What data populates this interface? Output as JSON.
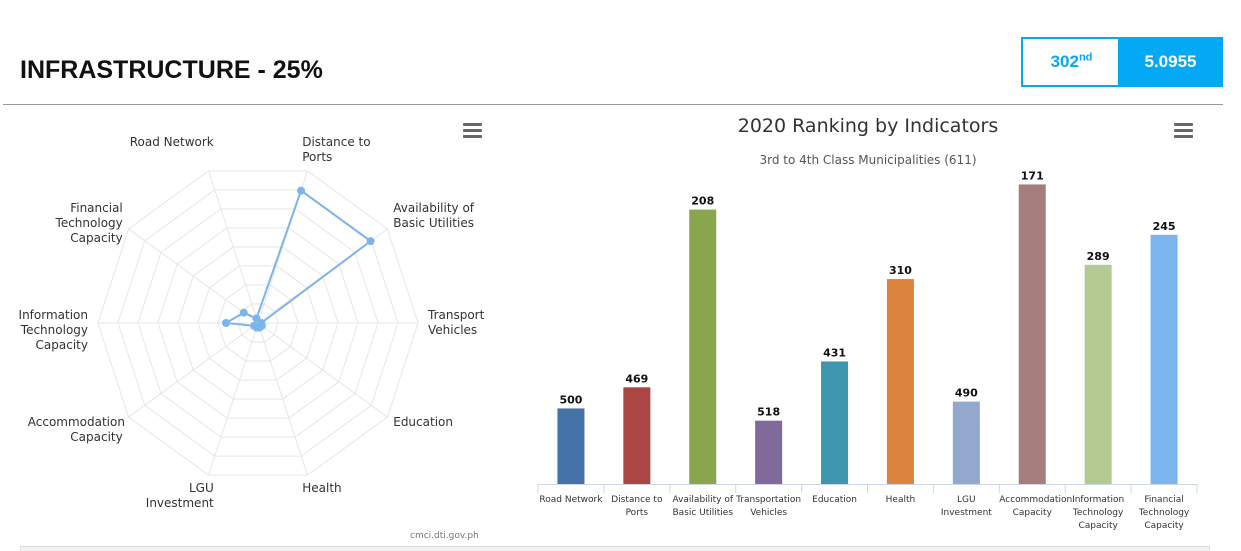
{
  "header": {
    "title": "INFRASTRUCTURE - 25%",
    "rank": "302",
    "rank_suffix": "nd",
    "score": 5.0955
  },
  "chart_data": [
    {
      "type": "radar",
      "categories": [
        "Road Network",
        "Distance to Ports",
        "Availability of Basic Utilities",
        "Transport Vehicles",
        "Education",
        "Health",
        "LGU Investment",
        "Accommodation Capacity",
        "Information Technology Capacity",
        "Financial Technology Capacity"
      ],
      "values": [
        0.03,
        0.87,
        0.87,
        0.02,
        0.03,
        0.03,
        0.03,
        0.03,
        0.2,
        0.11
      ],
      "ylim": [
        0,
        1
      ],
      "color": "#7cb5ec",
      "credit": "cmci.dti.gov.ph"
    },
    {
      "type": "bar",
      "title": "2020 Ranking by Indicators",
      "subtitle": "3rd to 4th Class Municipalities (611)",
      "categories": [
        "Road Network",
        "Distance to Ports",
        "Availability of Basic Utilities",
        "Transportation Vehicles",
        "Education",
        "Health",
        "LGU Investment",
        "Accommodation Capacity",
        "Information Technology Capacity",
        "Financial Technology Capacity"
      ],
      "values": [
        500,
        469,
        208,
        518,
        431,
        310,
        490,
        171,
        289,
        245
      ],
      "colors": [
        "#4572a7",
        "#aa4643",
        "#89a54e",
        "#80699b",
        "#3d96ae",
        "#db843d",
        "#92a8cd",
        "#a47d7c",
        "#b5ca92",
        "#7cb5ec"
      ],
      "ylim": [
        611,
        0
      ]
    }
  ]
}
